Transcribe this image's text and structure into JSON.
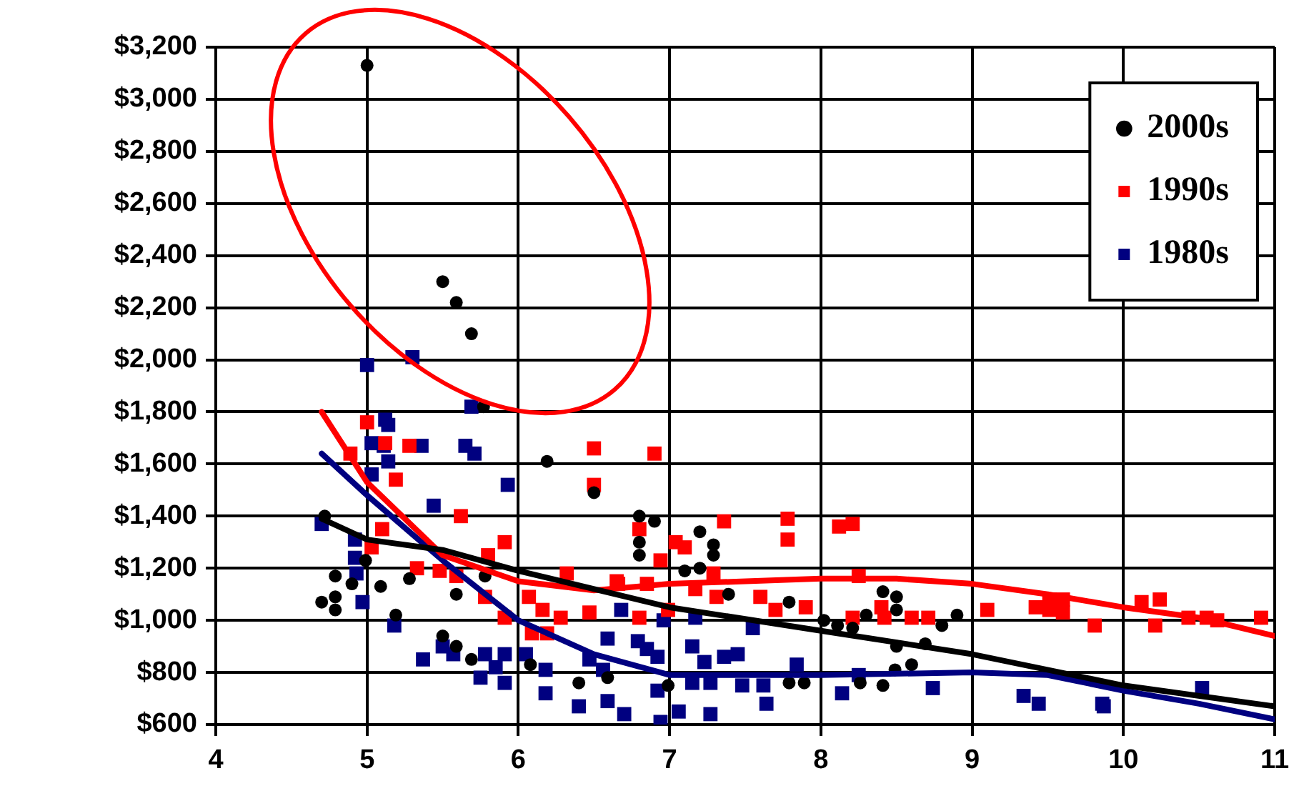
{
  "chart_data": {
    "type": "scatter",
    "xlim": [
      4,
      11
    ],
    "xticks": [
      4,
      5,
      6,
      7,
      8,
      9,
      10,
      11
    ],
    "ylim": [
      600,
      3200
    ],
    "yticks": [
      {
        "value": 600,
        "label": "$600"
      },
      {
        "value": 800,
        "label": "$800"
      },
      {
        "value": 1000,
        "label": "$1,000"
      },
      {
        "value": 1200,
        "label": "$1,200"
      },
      {
        "value": 1400,
        "label": "$1,400"
      },
      {
        "value": 1600,
        "label": "$1,600"
      },
      {
        "value": 1800,
        "label": "$1,800"
      },
      {
        "value": 2000,
        "label": "$2,000"
      },
      {
        "value": 2200,
        "label": "$2,200"
      },
      {
        "value": 2400,
        "label": "$2,400"
      },
      {
        "value": 2600,
        "label": "$2,600"
      },
      {
        "value": 2800,
        "label": "$2,800"
      },
      {
        "value": 3000,
        "label": "$3,000"
      },
      {
        "value": 3200,
        "label": "$3,200"
      }
    ],
    "grid": true,
    "legend": "top right",
    "series": [
      {
        "name": "2000s",
        "color": "#000000",
        "marker": "circle",
        "x": [
          5.0,
          5.5,
          5.59,
          5.69,
          5.77,
          6.19,
          6.5,
          4.72,
          4.99,
          4.79,
          5.09,
          4.9,
          5.28,
          4.7,
          4.79,
          4.79,
          5.19,
          5.59,
          5.5,
          5.59,
          5.69,
          6.08,
          6.4,
          6.59,
          5.78,
          6.8,
          6.9,
          6.8,
          6.8,
          7.2,
          7.29,
          7.29,
          7.1,
          7.2,
          7.39,
          7.79,
          8.02,
          8.11,
          8.21,
          8.41,
          8.5,
          8.5,
          8.3,
          8.8,
          8.9,
          8.69,
          8.5,
          8.49,
          8.6,
          6.99,
          7.79,
          7.89,
          8.02,
          8.14,
          8.26,
          8.41
        ],
        "values": [
          3130,
          2300,
          2220,
          2100,
          1820,
          1610,
          1490,
          1400,
          1230,
          1170,
          1130,
          1140,
          1160,
          1070,
          1090,
          1040,
          1020,
          1100,
          940,
          900,
          850,
          830,
          760,
          780,
          1170,
          1400,
          1380,
          1300,
          1250,
          1340,
          1290,
          1250,
          1190,
          1200,
          1100,
          1070,
          1000,
          980,
          970,
          1110,
          1090,
          1040,
          1020,
          980,
          1020,
          910,
          900,
          810,
          830,
          750,
          760,
          760,
          null,
          null,
          760,
          750
        ]
      },
      {
        "name": "1990s",
        "color": "#ff0000",
        "marker": "square",
        "x": [
          5.0,
          5.12,
          5.28,
          6.5,
          6.5,
          5.19,
          4.89,
          5.62,
          5.1,
          5.03,
          5.91,
          5.33,
          5.48,
          5.59,
          5.8,
          5.78,
          5.91,
          6.07,
          6.16,
          6.28,
          6.09,
          6.19,
          6.47,
          6.65,
          6.32,
          6.9,
          6.8,
          7.04,
          7.1,
          6.94,
          7.36,
          7.78,
          7.78,
          8.12,
          8.21,
          6.66,
          6.85,
          7.17,
          7.29,
          7.31,
          6.8,
          6.99,
          7.6,
          7.7,
          7.9,
          8.25,
          8.21,
          8.4,
          8.42,
          8.6,
          8.71,
          9.1,
          9.42,
          9.51,
          9.6,
          9.51,
          9.6,
          9.81,
          10.12,
          10.24,
          10.21,
          10.43,
          10.55,
          10.62,
          10.91
        ],
        "values": [
          1760,
          1680,
          1670,
          1660,
          1520,
          1540,
          1640,
          1400,
          1350,
          1280,
          1300,
          1200,
          1190,
          1170,
          1250,
          1090,
          1010,
          1090,
          1040,
          1010,
          950,
          950,
          1030,
          1150,
          1180,
          1640,
          1350,
          1300,
          1280,
          1230,
          1380,
          1390,
          1310,
          1360,
          1370,
          1140,
          1140,
          1120,
          1180,
          1090,
          1010,
          1040,
          1090,
          1040,
          1050,
          1170,
          1010,
          1050,
          1010,
          1010,
          1010,
          1040,
          1050,
          1040,
          1030,
          1080,
          1080,
          980,
          1070,
          1080,
          980,
          1010,
          1010,
          1000,
          1010
        ]
      },
      {
        "name": "1980s",
        "color": "#000080",
        "marker": "square",
        "x": [
          5.0,
          5.3,
          5.69,
          5.12,
          5.14,
          5.03,
          5.11,
          5.36,
          5.65,
          5.71,
          5.14,
          5.03,
          5.93,
          5.44,
          4.7,
          4.92,
          4.92,
          4.93,
          4.97,
          5.18,
          5.37,
          5.5,
          5.57,
          5.78,
          5.91,
          5.85,
          5.75,
          5.91,
          6.05,
          6.18,
          6.18,
          6.4,
          6.59,
          6.59,
          6.7,
          6.47,
          6.56,
          6.68,
          6.96,
          7.17,
          7.55,
          6.79,
          6.85,
          6.92,
          7.15,
          7.23,
          7.36,
          7.45,
          7.84,
          6.92,
          7.15,
          7.27,
          7.48,
          7.62,
          7.64,
          8.14,
          8.25,
          6.94,
          7.06,
          7.27,
          8.74,
          9.34,
          9.44,
          9.86,
          9.87,
          10.52
        ],
        "values": [
          1980,
          2010,
          1820,
          1770,
          1750,
          1680,
          1670,
          1670,
          1670,
          1640,
          1610,
          1560,
          1520,
          1440,
          1370,
          1310,
          1240,
          1180,
          1070,
          980,
          850,
          900,
          870,
          870,
          870,
          820,
          780,
          760,
          870,
          810,
          720,
          670,
          930,
          690,
          640,
          850,
          810,
          1040,
          1000,
          1010,
          970,
          920,
          890,
          860,
          900,
          840,
          860,
          870,
          830,
          730,
          760,
          760,
          750,
          750,
          680,
          720,
          790,
          610,
          650,
          640,
          740,
          710,
          680,
          680,
          670,
          740
        ]
      },
      {
        "type": "line",
        "color": "#000000",
        "marker": "none",
        "x": [
          4.7,
          5,
          5.5,
          6,
          7,
          8,
          9,
          10,
          11
        ],
        "values": [
          1390,
          1310,
          1270,
          1190,
          1050,
          960,
          870,
          750,
          670
        ]
      },
      {
        "type": "line",
        "color": "#ff0000",
        "marker": "none",
        "x": [
          4.7,
          5,
          5.5,
          6,
          6.5,
          7,
          8,
          8.5,
          9,
          9.5,
          10,
          10.5,
          11
        ],
        "values": [
          1800,
          1530,
          1250,
          1150,
          1115,
          1140,
          1160,
          1160,
          1140,
          1100,
          1050,
          1010,
          940
        ]
      },
      {
        "type": "line",
        "color": "#000080",
        "marker": "none",
        "x": [
          4.7,
          5,
          5.5,
          6,
          6.5,
          7,
          8,
          9,
          9.5,
          10,
          10.5,
          11
        ],
        "values": [
          1640,
          1480,
          1230,
          1000,
          870,
          790,
          790,
          800,
          790,
          730,
          680,
          620
        ]
      }
    ]
  }
}
